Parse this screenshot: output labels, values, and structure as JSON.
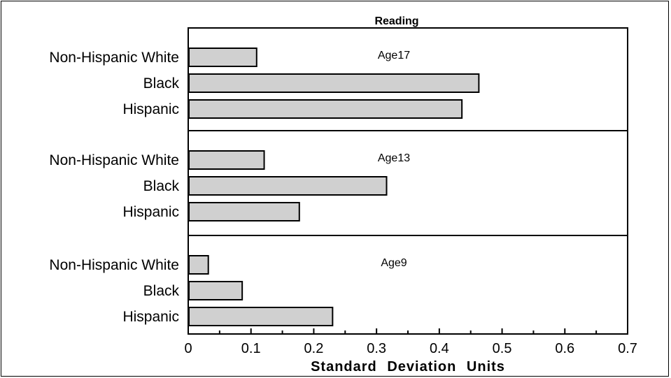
{
  "chart_data": {
    "type": "bar",
    "orientation": "horizontal",
    "title": "Reading",
    "xlabel": "Standard  Deviation  Units",
    "ylabel": "",
    "xlim": [
      0,
      0.7
    ],
    "xticks": [
      "0",
      "0.1",
      "0.2",
      "0.3",
      "0.4",
      "0.5",
      "0.6",
      "0.7"
    ],
    "bar_color": "#d0d0d0",
    "panels": [
      {
        "name": "Age 17",
        "label": "Age17",
        "categories": [
          "Non-Hispanic White",
          "Black",
          "Hispanic"
        ],
        "values": [
          0.109,
          0.463,
          0.436
        ]
      },
      {
        "name": "Age 13",
        "label": "Age13",
        "categories": [
          "Non-Hispanic White",
          "Black",
          "Hispanic"
        ],
        "values": [
          0.121,
          0.316,
          0.177
        ]
      },
      {
        "name": "Age 9",
        "label": "Age9",
        "categories": [
          "Non-Hispanic White",
          "Black",
          "Hispanic"
        ],
        "values": [
          0.032,
          0.086,
          0.23
        ]
      }
    ]
  }
}
